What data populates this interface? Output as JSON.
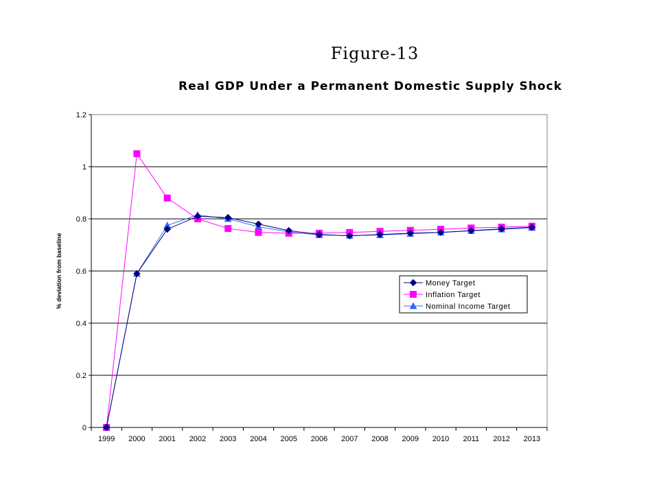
{
  "page": {
    "figure_label": "Figure-13"
  },
  "chart_data": {
    "type": "line",
    "title": "Real GDP Under a Permanent Domestic Supply Shock",
    "xlabel": "",
    "ylabel": "% deviation from baseline",
    "x": [
      "1999",
      "2000",
      "2001",
      "2002",
      "2003",
      "2004",
      "2005",
      "2006",
      "2007",
      "2008",
      "2009",
      "2010",
      "2011",
      "2012",
      "2013"
    ],
    "ylim": [
      0,
      1.2
    ],
    "yticks": [
      0,
      0.2,
      0.4,
      0.6,
      0.8,
      1,
      1.2
    ],
    "ytick_labels": [
      "0",
      "0.2",
      "0.4",
      "0.6",
      "0.8",
      "1",
      "1.2"
    ],
    "grid": "horizontal",
    "legend_position": "right",
    "series": [
      {
        "name": "Money Target",
        "color": "#000080",
        "marker": "diamond",
        "values": [
          0,
          0.59,
          0.76,
          0.81,
          0.805,
          0.78,
          0.755,
          0.74,
          0.735,
          0.74,
          0.745,
          0.748,
          0.755,
          0.762,
          0.768
        ]
      },
      {
        "name": "Inflation Target",
        "color": "#FF00FF",
        "marker": "square",
        "values": [
          0,
          1.05,
          0.88,
          0.8,
          0.763,
          0.748,
          0.745,
          0.745,
          0.748,
          0.752,
          0.756,
          0.76,
          0.765,
          0.768,
          0.772
        ]
      },
      {
        "name": "Nominal Income Target",
        "color": "#3366FF",
        "marker": "triangle",
        "values": [
          0,
          0.59,
          0.775,
          0.815,
          0.8,
          0.77,
          0.75,
          0.738,
          0.736,
          0.738,
          0.743,
          0.748,
          0.754,
          0.76,
          0.766
        ]
      }
    ]
  }
}
